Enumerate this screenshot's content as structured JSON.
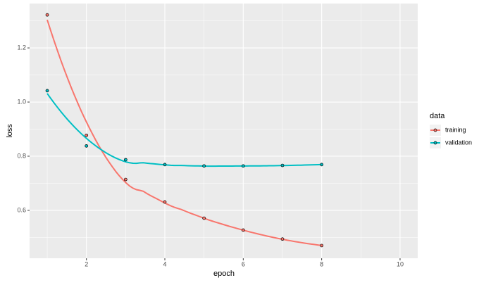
{
  "chart_data": {
    "type": "line",
    "xlabel": "epoch",
    "ylabel": "loss",
    "x": [
      1,
      2,
      3,
      4,
      5,
      6,
      7,
      8
    ],
    "series": [
      {
        "name": "training",
        "color": "#F8766D",
        "values": [
          1.322,
          0.877,
          0.714,
          0.631,
          0.571,
          0.527,
          0.494,
          0.47
        ]
      },
      {
        "name": "validation",
        "color": "#00BFC4",
        "values": [
          1.042,
          0.838,
          0.787,
          0.769,
          0.764,
          0.764,
          0.766,
          0.769
        ]
      }
    ],
    "xlim": [
      0.55,
      10.45
    ],
    "xticks": [
      2,
      4,
      6,
      8,
      10
    ],
    "ylim": [
      0.423,
      1.364
    ],
    "yticks": [
      0.6,
      0.8,
      {
        "value": 1,
        "label": "1.0"
      },
      1.2
    ],
    "grid": true,
    "smooth": true,
    "legend_title": "data",
    "legend_position": "right"
  }
}
